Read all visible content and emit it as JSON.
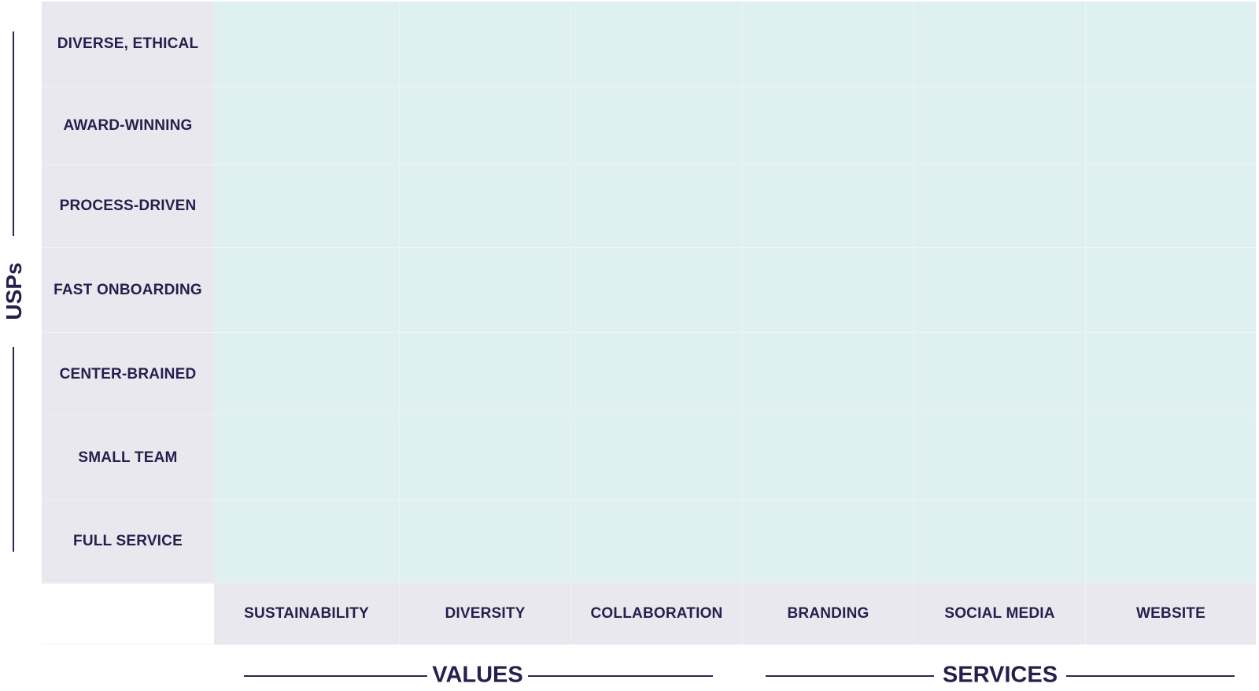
{
  "matrix": {
    "row_axis_label": "USPs",
    "rows": [
      "DIVERSE, ETHICAL",
      "AWARD-WINNING",
      "PROCESS-DRIVEN",
      "FAST ONBOARDING",
      "CENTER-BRAINED",
      "SMALL TEAM",
      "FULL SERVICE"
    ],
    "columns": [
      "SUSTAINABILITY",
      "DIVERSITY",
      "COLLABORATION",
      "BRANDING",
      "SOCIAL MEDIA",
      "WEBSITE"
    ],
    "column_groups": [
      {
        "label": "VALUES"
      },
      {
        "label": "SERVICES"
      }
    ]
  },
  "colors": {
    "text": "#241f4d",
    "label_bg": "#e9e8ee",
    "cell_bg": "#dff0f0"
  }
}
